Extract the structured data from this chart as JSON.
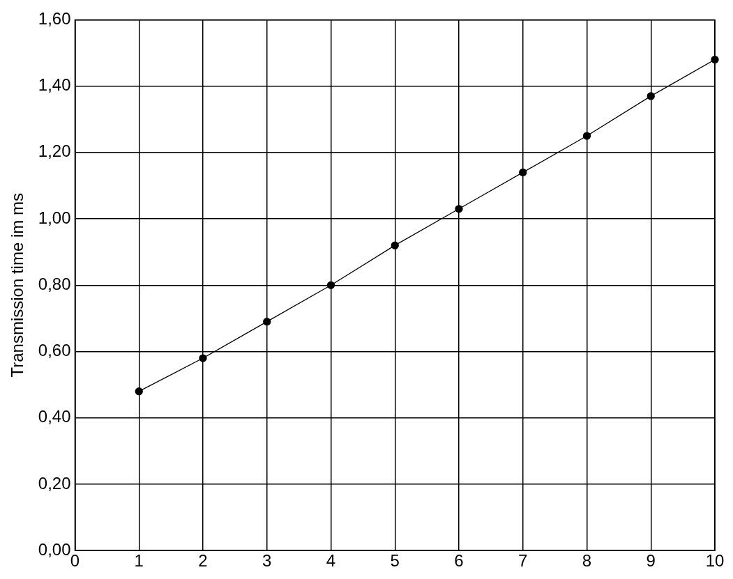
{
  "chart_data": {
    "type": "line",
    "ylabel": "Transmission time im ms",
    "x": [
      1,
      2,
      3,
      4,
      5,
      6,
      7,
      8,
      9,
      10
    ],
    "series": [
      {
        "color": "#000000",
        "values": [
          0.48,
          0.58,
          0.69,
          0.8,
          0.92,
          1.03,
          1.14,
          1.25,
          1.37,
          1.48
        ]
      }
    ],
    "xlim": [
      0,
      10
    ],
    "xticks": [
      0,
      1,
      2,
      3,
      4,
      5,
      6,
      7,
      8,
      9,
      10
    ],
    "ylim": [
      0,
      1.6
    ],
    "yticks": [
      {
        "value": 0,
        "label": "0,00"
      },
      {
        "value": 0.2,
        "label": "0,20"
      },
      {
        "value": 0.4,
        "label": "0,40"
      },
      {
        "value": 0.6,
        "label": "0,60"
      },
      {
        "value": 0.8,
        "label": "0,80"
      },
      {
        "value": 1.0,
        "label": "1,00"
      },
      {
        "value": 1.2,
        "label": "1,20"
      },
      {
        "value": 1.4,
        "label": "1,40"
      },
      {
        "value": 1.6,
        "label": "1,60"
      }
    ],
    "grid": true,
    "marker": "circle",
    "line_style": "solid",
    "legend": false
  }
}
